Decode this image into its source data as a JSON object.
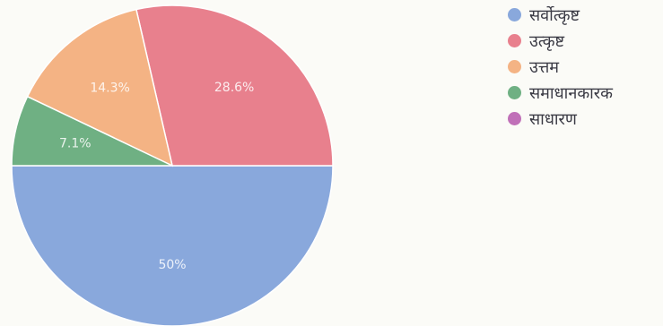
{
  "chart_data": {
    "type": "pie",
    "title": "",
    "legend_placement": "top-right",
    "slices": [
      {
        "name": "सर्वोत्कृष्ट",
        "value": 50,
        "label": "50%",
        "color": "#89a8dc"
      },
      {
        "name": "उत्कृष्ट",
        "value": 28.6,
        "label": "28.6%",
        "color": "#e8808d"
      },
      {
        "name": "उत्तम",
        "value": 14.3,
        "label": "14.3%",
        "color": "#f4b384"
      },
      {
        "name": "समाधानकारक",
        "value": 7.1,
        "label": "7.1%",
        "color": "#6fb083"
      },
      {
        "name": "साधारण",
        "value": 0,
        "label": "",
        "color": "#c070b8"
      }
    ]
  }
}
